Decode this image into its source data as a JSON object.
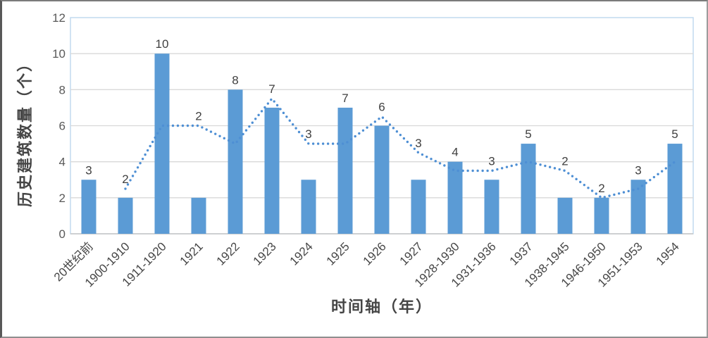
{
  "chart_data": {
    "type": "bar",
    "title": "",
    "xlabel": "时间轴（年）",
    "ylabel": "历史建筑数量（个）",
    "categories": [
      "20世纪前",
      "1900-1910",
      "1911-1920",
      "1921",
      "1922",
      "1923",
      "1924",
      "1925",
      "1926",
      "1927",
      "1928-1930",
      "1931-1936",
      "1937",
      "1938-1945",
      "1946-1950",
      "1951-1953",
      "1954"
    ],
    "values": [
      3,
      2,
      10,
      2,
      8,
      7,
      3,
      7,
      6,
      3,
      4,
      3,
      5,
      2,
      2,
      3,
      5
    ],
    "data_labels": [
      "3",
      "2",
      "10",
      "2",
      "8",
      "7",
      "3",
      "7",
      "6",
      "3",
      "4",
      "3",
      "5",
      "2",
      "2",
      "3",
      "5"
    ],
    "trendline": {
      "type": "moving-average",
      "style": "dotted",
      "values": [
        null,
        2.5,
        6,
        6,
        5,
        7.5,
        5,
        5,
        6.5,
        4.5,
        3.5,
        3.5,
        4,
        3.5,
        2,
        2.5,
        4
      ]
    },
    "ylim": [
      0,
      12
    ],
    "yticks": [
      0,
      2,
      4,
      6,
      8,
      10,
      12
    ],
    "grid": "horizontal",
    "legend": "none",
    "colors": {
      "bar": "#5B9BD5",
      "trendline": "#4E8FD4",
      "gridline": "#D9D9D9",
      "axis_line": "#C6C6C6",
      "plot_border": "#BDD7EE",
      "tick_label": "#595959",
      "data_label": "#404040",
      "axis_title": "#454545"
    }
  }
}
